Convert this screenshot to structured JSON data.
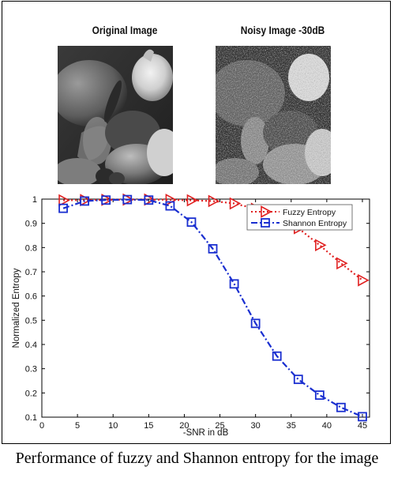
{
  "panels": {
    "original_title": "Original Image",
    "noisy_title": "Noisy Image -30dB"
  },
  "caption": "Performance of fuzzy and Shannon entropy for the image",
  "chart_data": {
    "type": "line",
    "xlabel": "-SNR in dB",
    "ylabel": "Normalized Entropy",
    "xlim": [
      0,
      46
    ],
    "ylim": [
      0.1,
      1
    ],
    "xticks": [
      0,
      5,
      10,
      15,
      20,
      25,
      30,
      35,
      40,
      45
    ],
    "yticks": [
      0.1,
      0.2,
      0.3,
      0.4,
      0.5,
      0.6,
      0.7,
      0.8,
      0.9,
      1
    ],
    "grid": false,
    "legend_position": "top-right",
    "series": [
      {
        "name": "Fuzzy Entropy",
        "color": "#e02020",
        "line_style": "dotted",
        "marker": "triangle-right",
        "x": [
          3,
          6,
          9,
          12,
          15,
          18,
          21,
          24,
          27,
          30,
          33,
          36,
          39,
          42,
          45
        ],
        "y": [
          0.995,
          0.996,
          0.997,
          0.998,
          0.998,
          0.997,
          0.995,
          0.992,
          0.982,
          0.96,
          0.93,
          0.88,
          0.81,
          0.735,
          0.665
        ]
      },
      {
        "name": "Shannon Entropy",
        "color": "#1a2fd0",
        "line_style": "dash-dot",
        "marker": "square",
        "x": [
          3,
          6,
          9,
          12,
          15,
          18,
          21,
          24,
          27,
          30,
          33,
          36,
          39,
          42,
          45
        ],
        "y": [
          0.962,
          0.992,
          0.996,
          0.998,
          0.996,
          0.972,
          0.905,
          0.795,
          0.65,
          0.487,
          0.352,
          0.256,
          0.191,
          0.14,
          0.102
        ]
      }
    ]
  }
}
